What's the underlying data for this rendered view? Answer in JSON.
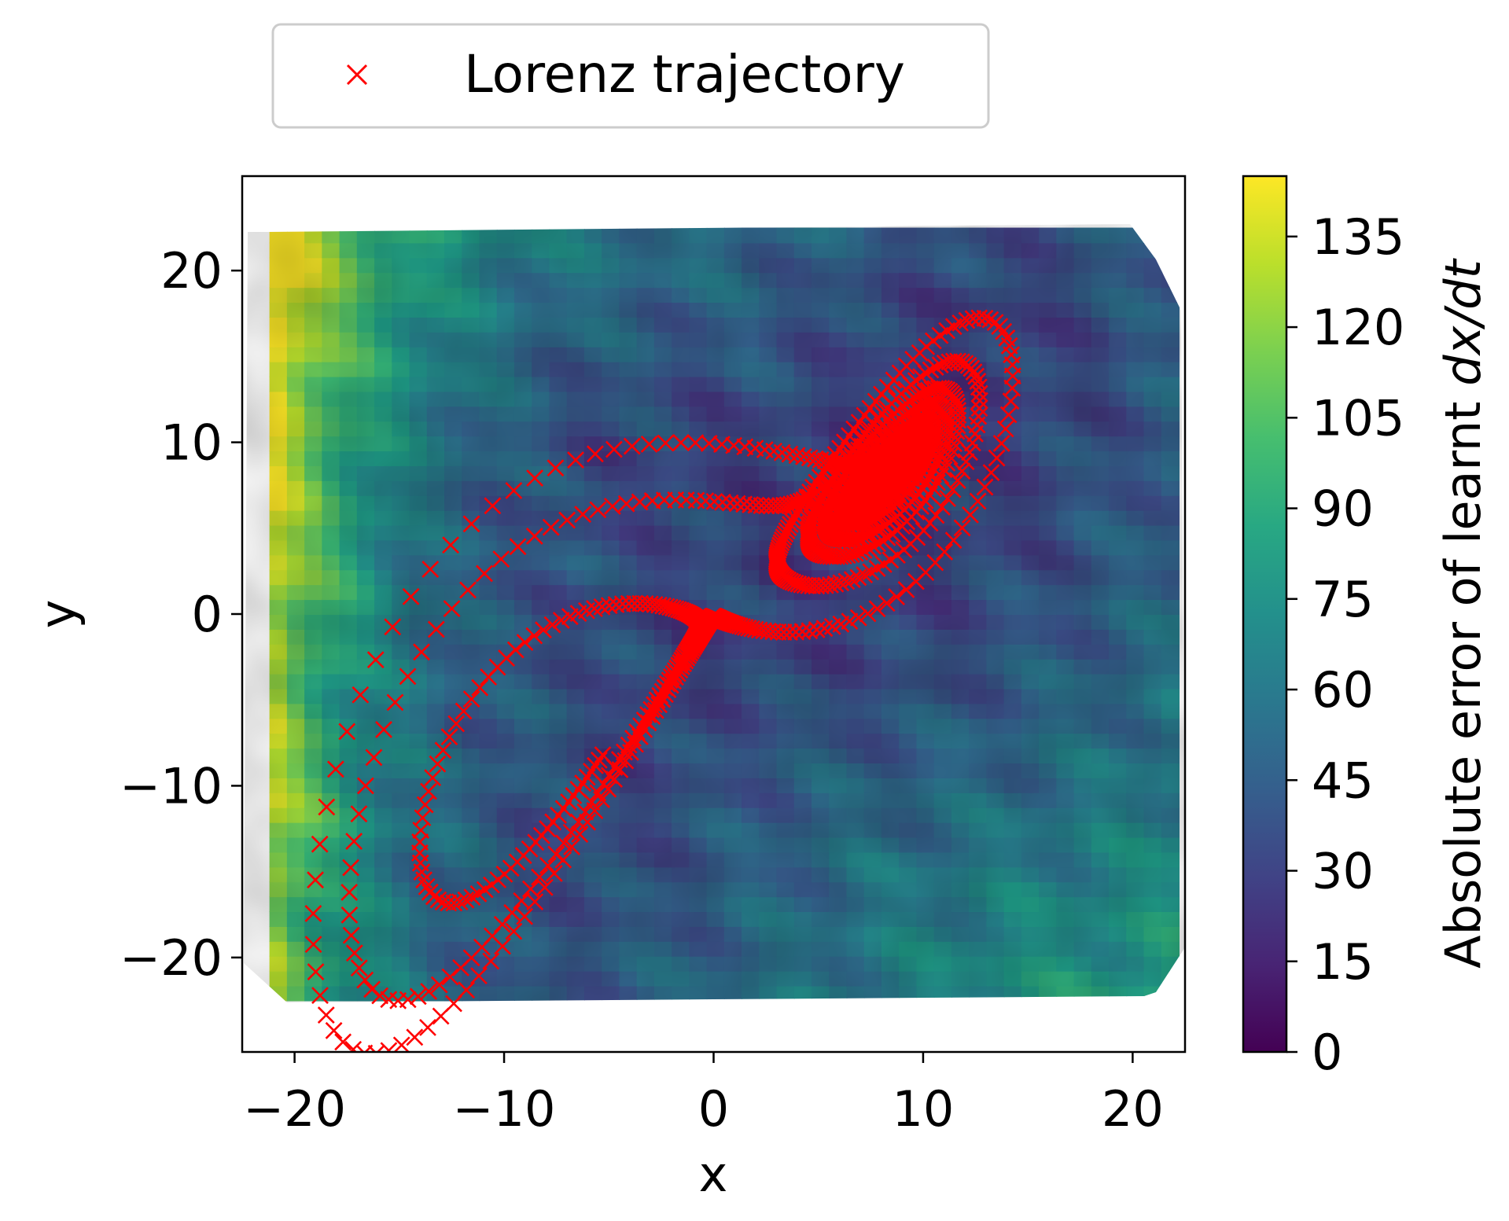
{
  "chart_data": {
    "type": "scatter",
    "title": "",
    "xlabel": "x",
    "ylabel": "y",
    "xlim": [
      -22.5,
      22.5
    ],
    "ylim": [
      -25.5,
      25.5
    ],
    "x_ticks": [
      -20,
      -10,
      0,
      10,
      20
    ],
    "x_tick_labels": [
      "−20",
      "−10",
      "0",
      "10",
      "20"
    ],
    "y_ticks": [
      -20,
      -10,
      0,
      10,
      20
    ],
    "y_tick_labels": [
      "−20",
      "−10",
      "0",
      "10",
      "20"
    ],
    "grid": false,
    "legend": {
      "placement": "top-left, above plot",
      "entries": [
        {
          "label": "Lorenz trajectory",
          "marker": "x",
          "color": "#ff0000"
        }
      ]
    },
    "marker_color": "#ff0000",
    "series": [
      {
        "name": "Lorenz trajectory",
        "marker": "x",
        "color": "#ff0000"
      }
    ],
    "attractor": {
      "sigma": 10,
      "rho": 28,
      "beta": 2.6667,
      "dt": 0.006,
      "steps": 1500,
      "start": [
        1.0,
        1.0,
        1.0
      ]
    },
    "heatmap": {
      "colormap": "viridis",
      "domain_x": [
        -21.2,
        22.2
      ],
      "domain_y": [
        -22.5,
        22.5
      ],
      "colorbar_label_prefix": "Absolute error of learnt ",
      "colorbar_label_math": "dx/dt",
      "colorbar_range": [
        0,
        145
      ],
      "colorbar_ticks": [
        0,
        15,
        30,
        45,
        60,
        75,
        90,
        105,
        120,
        135
      ],
      "colorbar_tick_labels": [
        "0",
        "15",
        "30",
        "45",
        "60",
        "75",
        "90",
        "105",
        "120",
        "135"
      ]
    }
  }
}
